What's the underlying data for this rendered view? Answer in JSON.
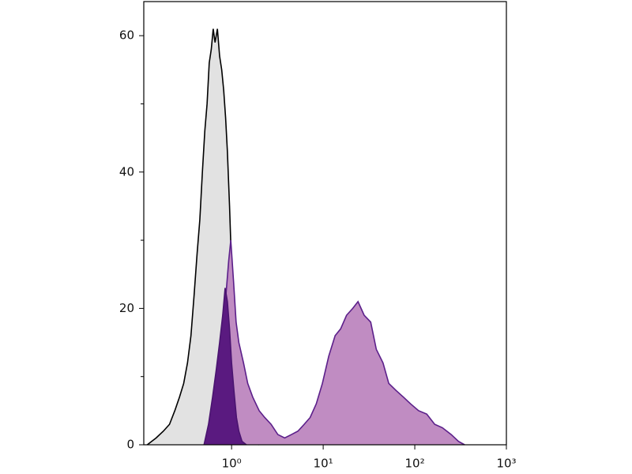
{
  "chart_data": {
    "type": "area",
    "log_x": true,
    "xlim": [
      0.11,
      1000
    ],
    "xticks": [
      {
        "value": 1,
        "label": "10⁰"
      },
      {
        "value": 10,
        "label": "10¹"
      },
      {
        "value": 100,
        "label": "10²"
      },
      {
        "value": 1000,
        "label": "10³"
      }
    ],
    "ylim": [
      0,
      65
    ],
    "yticks": [
      0,
      20,
      40,
      60
    ],
    "yminor": [
      10,
      30,
      50
    ],
    "series": [
      {
        "color": "#000000",
        "fill": "#e2e2e2",
        "x": [
          0.12,
          0.15,
          0.18,
          0.21,
          0.24,
          0.27,
          0.3,
          0.33,
          0.36,
          0.39,
          0.42,
          0.45,
          0.48,
          0.51,
          0.54,
          0.57,
          0.6,
          0.63,
          0.66,
          0.7,
          0.74,
          0.78,
          0.82,
          0.86,
          0.9,
          0.95,
          1.0,
          1.05,
          1.1,
          1.2,
          1.35,
          1.5,
          1.7,
          2.0
        ],
        "values": [
          0,
          1,
          2,
          3,
          5,
          7,
          9,
          12,
          16,
          22,
          28,
          33,
          40,
          46,
          50,
          56,
          58,
          61,
          59,
          61,
          57,
          55,
          52,
          48,
          43,
          35,
          26,
          18,
          12,
          6,
          3,
          1.5,
          0.5,
          0
        ]
      },
      {
        "color": "#5b1f8a",
        "fill": "#c08cc2",
        "x": [
          0.55,
          0.62,
          0.7,
          0.76,
          0.82,
          0.88,
          0.93,
          0.98,
          1.05,
          1.12,
          1.2,
          1.35,
          1.5,
          1.7,
          2.0,
          2.3,
          2.7,
          3.2,
          3.8,
          4.5,
          5.3,
          6.2,
          7.2,
          8.4,
          9.8,
          11.5,
          13.5,
          15.5,
          18,
          21,
          24,
          28,
          33,
          38,
          45,
          52,
          62,
          75,
          90,
          110,
          135,
          165,
          200,
          250,
          300,
          350
        ],
        "values": [
          0,
          2,
          8,
          14,
          18,
          23,
          27,
          30,
          24,
          18,
          15,
          12,
          9,
          7,
          5,
          4,
          3,
          1.5,
          1,
          1.5,
          2,
          3,
          4,
          6,
          9,
          13,
          16,
          17,
          19,
          20,
          21,
          19,
          18,
          14,
          12,
          9,
          8,
          7,
          6,
          5,
          4.5,
          3,
          2.5,
          1.5,
          0.5,
          0
        ]
      },
      {
        "color": "#4a1470",
        "fill": "#5a1a80",
        "x": [
          0.5,
          0.56,
          0.62,
          0.68,
          0.74,
          0.8,
          0.85,
          0.9,
          0.95,
          1.0,
          1.06,
          1.13,
          1.2,
          1.3,
          1.45
        ],
        "values": [
          0,
          3,
          7,
          11,
          15,
          19,
          23,
          21,
          17,
          12,
          8,
          4,
          2,
          0.5,
          0
        ]
      }
    ]
  }
}
